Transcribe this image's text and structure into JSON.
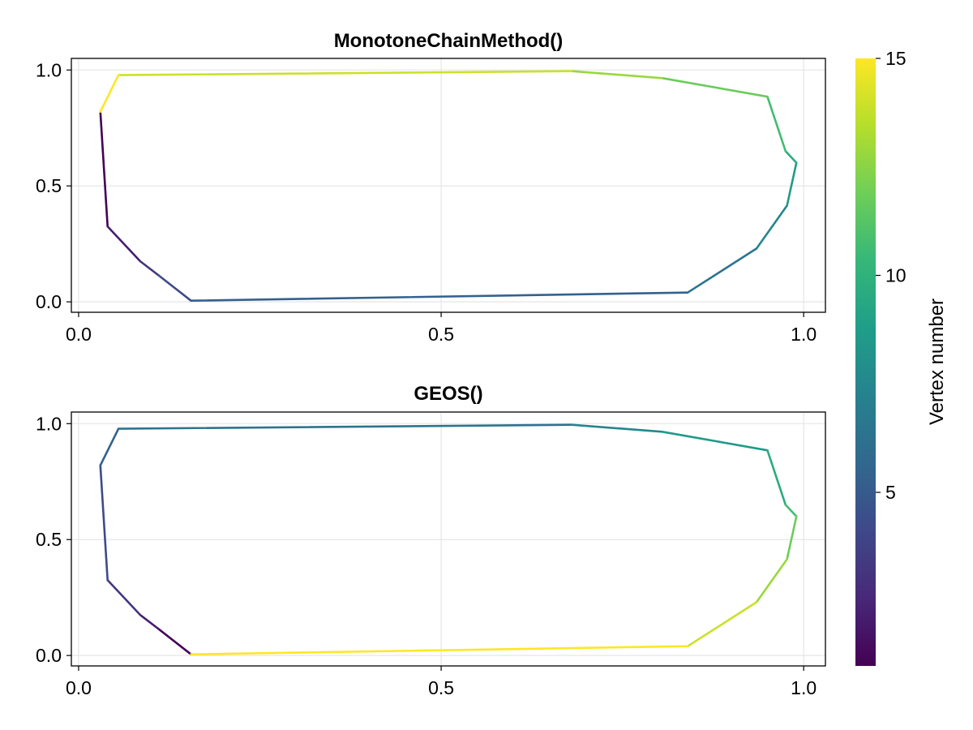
{
  "chart_data": [
    {
      "type": "line",
      "title": "MonotoneChainMethod()",
      "xlim": [
        -0.01,
        1.03
      ],
      "ylim": [
        -0.045,
        1.05
      ],
      "xticks": [
        0.0,
        0.5,
        1.0
      ],
      "xtick_labels": [
        "0.0",
        "0.5",
        "1.0"
      ],
      "yticks": [
        0.0,
        0.5,
        1.0
      ],
      "ytick_labels": [
        "0.0",
        "0.5",
        "1.0"
      ],
      "grid": true,
      "color_by": "vertex number",
      "vertex_color_order": "ascending",
      "points": [
        {
          "x": 0.03,
          "y": 0.82
        },
        {
          "x": 0.04,
          "y": 0.325
        },
        {
          "x": 0.085,
          "y": 0.175
        },
        {
          "x": 0.11,
          "y": 0.115
        },
        {
          "x": 0.155,
          "y": 0.005
        },
        {
          "x": 0.84,
          "y": 0.04
        },
        {
          "x": 0.935,
          "y": 0.23
        },
        {
          "x": 0.977,
          "y": 0.415
        },
        {
          "x": 0.99,
          "y": 0.6
        },
        {
          "x": 0.975,
          "y": 0.65
        },
        {
          "x": 0.95,
          "y": 0.885
        },
        {
          "x": 0.805,
          "y": 0.965
        },
        {
          "x": 0.68,
          "y": 0.995
        },
        {
          "x": 0.055,
          "y": 0.978
        },
        {
          "x": 0.03,
          "y": 0.82
        }
      ]
    },
    {
      "type": "line",
      "title": "GEOS()",
      "xlim": [
        -0.01,
        1.03
      ],
      "ylim": [
        -0.045,
        1.05
      ],
      "xticks": [
        0.0,
        0.5,
        1.0
      ],
      "xtick_labels": [
        "0.0",
        "0.5",
        "1.0"
      ],
      "yticks": [
        0.0,
        0.5,
        1.0
      ],
      "ytick_labels": [
        "0.0",
        "0.5",
        "1.0"
      ],
      "grid": true,
      "color_by": "vertex number",
      "vertex_color_order": "ascending",
      "points": [
        {
          "x": 0.155,
          "y": 0.005
        },
        {
          "x": 0.11,
          "y": 0.115
        },
        {
          "x": 0.085,
          "y": 0.175
        },
        {
          "x": 0.04,
          "y": 0.325
        },
        {
          "x": 0.03,
          "y": 0.82
        },
        {
          "x": 0.055,
          "y": 0.978
        },
        {
          "x": 0.68,
          "y": 0.995
        },
        {
          "x": 0.805,
          "y": 0.965
        },
        {
          "x": 0.95,
          "y": 0.885
        },
        {
          "x": 0.975,
          "y": 0.65
        },
        {
          "x": 0.99,
          "y": 0.6
        },
        {
          "x": 0.977,
          "y": 0.415
        },
        {
          "x": 0.935,
          "y": 0.23
        },
        {
          "x": 0.84,
          "y": 0.04
        },
        {
          "x": 0.155,
          "y": 0.005
        }
      ]
    }
  ],
  "colorbar": {
    "label": "Vertex number",
    "colormap": "viridis",
    "range": [
      1,
      15
    ],
    "ticks": [
      5,
      10,
      15
    ],
    "tick_labels": [
      "5",
      "10",
      "15"
    ]
  },
  "colors": {
    "grid": "#e6e6e6",
    "axis": "#000000",
    "viridis": [
      "#440154",
      "#482878",
      "#3e4989",
      "#31688e",
      "#26828e",
      "#1f9e89",
      "#35b779",
      "#6ece58",
      "#b5de2b",
      "#fde725"
    ]
  }
}
